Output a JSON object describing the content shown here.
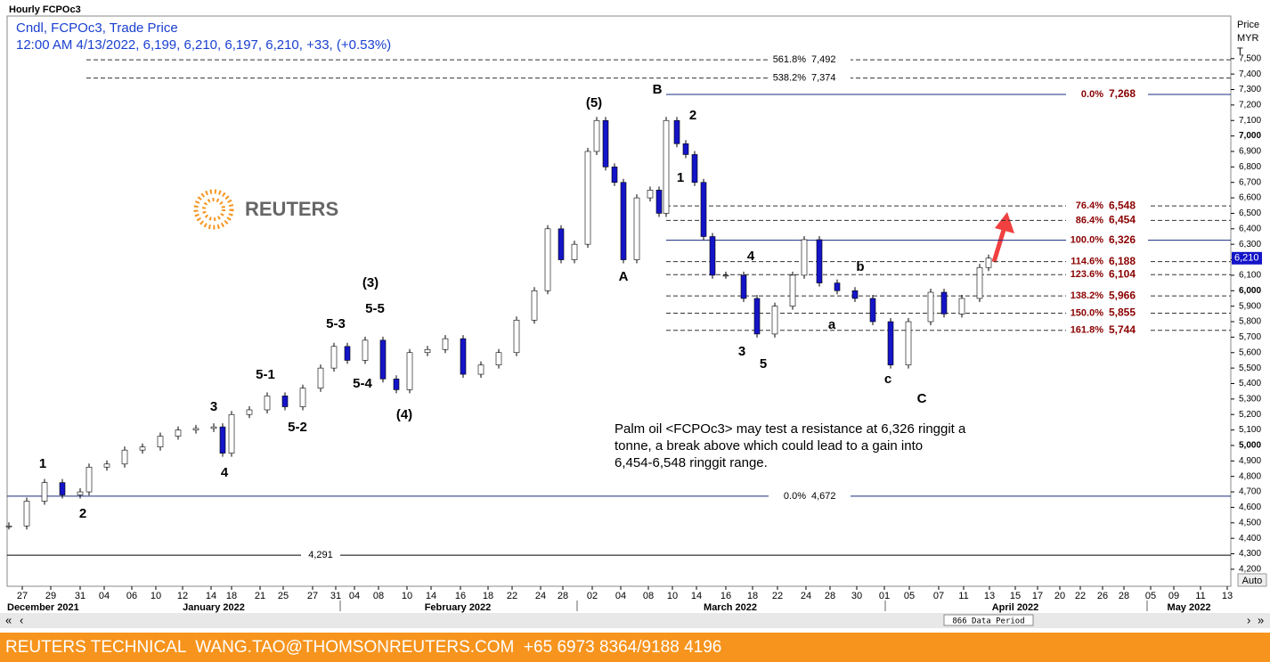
{
  "chart_data": {
    "type": "candlestick",
    "title": "Hourly FCPOc3",
    "subtitle": "Cndl, FCPOc3, Trade Price",
    "info": "12:00 AM 4/13/2022, 6,199, 6,210, 6,197, 6,210, +33, (+0.53%)",
    "y_axis_label": [
      "Price",
      "MYR",
      "T"
    ],
    "xlim": [
      0,
      137.4
    ],
    "ylim": [
      4090,
      7775
    ],
    "up_color": "#ffffff",
    "down_color": "#1414c8",
    "x": [
      0.2,
      2.2,
      4.2,
      6.2,
      8.2,
      9.2,
      11.2,
      13.2,
      15.2,
      17.2,
      19.2,
      21.2,
      23.2,
      24.2,
      25.2,
      27.2,
      29.2,
      31.2,
      33.2,
      35.2,
      36.7,
      38.2,
      40.2,
      42.2,
      43.7,
      45.2,
      47.2,
      49.2,
      51.2,
      53.2,
      55.2,
      57.2,
      59.2,
      60.7,
      62.2,
      63.7,
      65.2,
      66.2,
      67.2,
      68.2,
      69.2,
      70.7,
      72.2,
      73.2,
      74,
      75.2,
      76.2,
      77.2,
      78.2,
      79.2,
      80.7,
      82.7,
      84.2,
      86.2,
      88.2,
      89.5,
      91.2,
      93.2,
      95.2,
      97.2,
      99.2,
      101.2,
      103.7,
      105.2,
      107.2,
      109.2,
      110.2
    ],
    "close": [
      4480,
      4640,
      4760,
      4680,
      4700,
      4860,
      4880,
      4970,
      4990,
      5060,
      5100,
      5110,
      5120,
      4950,
      5200,
      5230,
      5320,
      5250,
      5370,
      5500,
      5640,
      5550,
      5680,
      5430,
      5360,
      5600,
      5620,
      5690,
      5460,
      5520,
      5600,
      5810,
      6000,
      6400,
      6200,
      6300,
      6900,
      7100,
      6800,
      6700,
      6200,
      6600,
      6650,
      6500,
      7100,
      6950,
      6880,
      6700,
      6350,
      6100,
      6100,
      5950,
      5720,
      5900,
      6100,
      6330,
      6050,
      6000,
      5950,
      5800,
      5520,
      5800,
      5990,
      5850,
      5950,
      6150,
      6210
    ],
    "yticks": [
      {
        "value": 4200,
        "label": "4,200"
      },
      {
        "value": 4300,
        "label": "4,300"
      },
      {
        "value": 4400,
        "label": "4,400"
      },
      {
        "value": 4500,
        "label": "4,500"
      },
      {
        "value": 4600,
        "label": "4,600"
      },
      {
        "value": 4700,
        "label": "4,700"
      },
      {
        "value": 4800,
        "label": "4,800"
      },
      {
        "value": 4900,
        "label": "4,900"
      },
      {
        "value": 5000,
        "label": "5,000"
      },
      {
        "value": 5100,
        "label": "5,100"
      },
      {
        "value": 5200,
        "label": "5,200"
      },
      {
        "value": 5300,
        "label": "5,300"
      },
      {
        "value": 5400,
        "label": "5,400"
      },
      {
        "value": 5500,
        "label": "5,500"
      },
      {
        "value": 5600,
        "label": "5,600"
      },
      {
        "value": 5700,
        "label": "5,700"
      },
      {
        "value": 5800,
        "label": "5,800"
      },
      {
        "value": 5900,
        "label": "5,900"
      },
      {
        "value": 6000,
        "label": "6,000"
      },
      {
        "value": 6100,
        "label": "6,100"
      },
      {
        "value": 6200,
        "label": "6,200"
      },
      {
        "value": 6300,
        "label": "6,300"
      },
      {
        "value": 6400,
        "label": "6,400"
      },
      {
        "value": 6500,
        "label": "6,500"
      },
      {
        "value": 6600,
        "label": "6,600"
      },
      {
        "value": 6700,
        "label": "6,700"
      },
      {
        "value": 6800,
        "label": "6,800"
      },
      {
        "value": 6900,
        "label": "6,900"
      },
      {
        "value": 7000,
        "label": "7,000"
      },
      {
        "value": 7100,
        "label": "7,100"
      },
      {
        "value": 7200,
        "label": "7,200"
      },
      {
        "value": 7300,
        "label": "7,300"
      },
      {
        "value": 7400,
        "label": "7,400"
      },
      {
        "value": 7500,
        "label": "7,500"
      }
    ],
    "xticks": [
      {
        "value": 1.7,
        "label": "27"
      },
      {
        "value": 4.9,
        "label": "29"
      },
      {
        "value": 8.2,
        "label": "31"
      },
      {
        "value": 10.9,
        "label": "04"
      },
      {
        "value": 14,
        "label": "06"
      },
      {
        "value": 16.7,
        "label": "10"
      },
      {
        "value": 19.7,
        "label": "12"
      },
      {
        "value": 22.9,
        "label": "14"
      },
      {
        "value": 25.2,
        "label": "18"
      },
      {
        "value": 28.4,
        "label": "21"
      },
      {
        "value": 31,
        "label": "25"
      },
      {
        "value": 34.3,
        "label": "27"
      },
      {
        "value": 36.9,
        "label": "31"
      },
      {
        "value": 39,
        "label": "04"
      },
      {
        "value": 41.7,
        "label": "08"
      },
      {
        "value": 44.9,
        "label": "10"
      },
      {
        "value": 47.6,
        "label": "14"
      },
      {
        "value": 50.9,
        "label": "16"
      },
      {
        "value": 54,
        "label": "18"
      },
      {
        "value": 56.7,
        "label": "22"
      },
      {
        "value": 59.9,
        "label": "24"
      },
      {
        "value": 62.4,
        "label": "28"
      },
      {
        "value": 65.7,
        "label": "02"
      },
      {
        "value": 68.9,
        "label": "04"
      },
      {
        "value": 72,
        "label": "08"
      },
      {
        "value": 74.7,
        "label": "10"
      },
      {
        "value": 77.4,
        "label": "14"
      },
      {
        "value": 80.7,
        "label": "16"
      },
      {
        "value": 83.7,
        "label": "18"
      },
      {
        "value": 86.5,
        "label": "22"
      },
      {
        "value": 89.7,
        "label": "24"
      },
      {
        "value": 92.4,
        "label": "28"
      },
      {
        "value": 95.4,
        "label": "30"
      },
      {
        "value": 98.5,
        "label": "01"
      },
      {
        "value": 101.3,
        "label": "05"
      },
      {
        "value": 104.6,
        "label": "07"
      },
      {
        "value": 107.4,
        "label": "11"
      },
      {
        "value": 110.3,
        "label": "13"
      },
      {
        "value": 113.2,
        "label": "15"
      },
      {
        "value": 115.7,
        "label": "17"
      },
      {
        "value": 118.2,
        "label": "20"
      },
      {
        "value": 120.5,
        "label": "22"
      },
      {
        "value": 123,
        "label": "26"
      },
      {
        "value": 125.4,
        "label": "28"
      },
      {
        "value": 128.4,
        "label": "05"
      },
      {
        "value": 131,
        "label": "09"
      },
      {
        "value": 134,
        "label": "11"
      },
      {
        "value": 137,
        "label": "13"
      }
    ],
    "months": [
      "December 2021",
      "January 2022",
      "February 2022",
      "March 2022",
      "April 2022",
      "May 2022"
    ],
    "levels": [
      {
        "ratio": "561.8%",
        "value": 7492,
        "value_label": "7,492",
        "color": "#000000",
        "style": "dashed"
      },
      {
        "ratio": "538.2%",
        "value": 7374,
        "value_label": "7,374",
        "color": "#000000",
        "style": "dashed"
      },
      {
        "ratio": "0.0%",
        "value": 7268,
        "value_label": "7,268",
        "color": "#8b0000",
        "style": "solid"
      },
      {
        "ratio": "76.4%",
        "value": 6548,
        "value_label": "6,548",
        "color": "#8b0000",
        "style": "dashed"
      },
      {
        "ratio": "86.4%",
        "value": 6454,
        "value_label": "6,454",
        "color": "#8b0000",
        "style": "dashed"
      },
      {
        "ratio": "100.0%",
        "value": 6326,
        "value_label": "6,326",
        "color": "#8b0000",
        "style": "solid"
      },
      {
        "ratio": "114.6%",
        "value": 6188,
        "value_label": "6,188",
        "color": "#8b0000",
        "style": "dashed"
      },
      {
        "ratio": "123.6%",
        "value": 6104,
        "value_label": "6,104",
        "color": "#8b0000",
        "style": "dashed"
      },
      {
        "ratio": "138.2%",
        "value": 5966,
        "value_label": "5,966",
        "color": "#8b0000",
        "style": "dashed"
      },
      {
        "ratio": "150.0%",
        "value": 5855,
        "value_label": "5,855",
        "color": "#8b0000",
        "style": "dashed"
      },
      {
        "ratio": "161.8%",
        "value": 5744,
        "value_label": "5,744",
        "color": "#8b0000",
        "style": "dashed"
      },
      {
        "ratio": "0.0%",
        "value": 4672,
        "value_label": "4,672",
        "color": "#000000",
        "style": "solid"
      },
      {
        "value": 4291,
        "value_label": "4,291",
        "color": "#000000",
        "style": "solid"
      }
    ],
    "last_price": {
      "value": 6210,
      "label": "6,210"
    },
    "annotations": [
      "1",
      "2",
      "3",
      "4",
      "5-1",
      "5-2",
      "5-3",
      "(3)",
      "5-5",
      "5-4",
      "(4)",
      "(5)",
      "A",
      "B",
      "2",
      "1",
      "4",
      "3",
      "5",
      "a",
      "b",
      "c",
      "C"
    ],
    "comment": [
      "Palm oil <FCPOc3> may test a resistance at 6,326 ringgit a",
      "tonne, a break above which could lead to a gain into",
      "6,454-6,548 ringgit range."
    ],
    "logo": "REUTERS",
    "auto_button": "Auto",
    "data_period": "866 Data Period"
  },
  "footer": "REUTERS TECHNICAL  WANG.TAO@THOMSONREUTERS.COM  +65 6973 8364/9188 4196"
}
